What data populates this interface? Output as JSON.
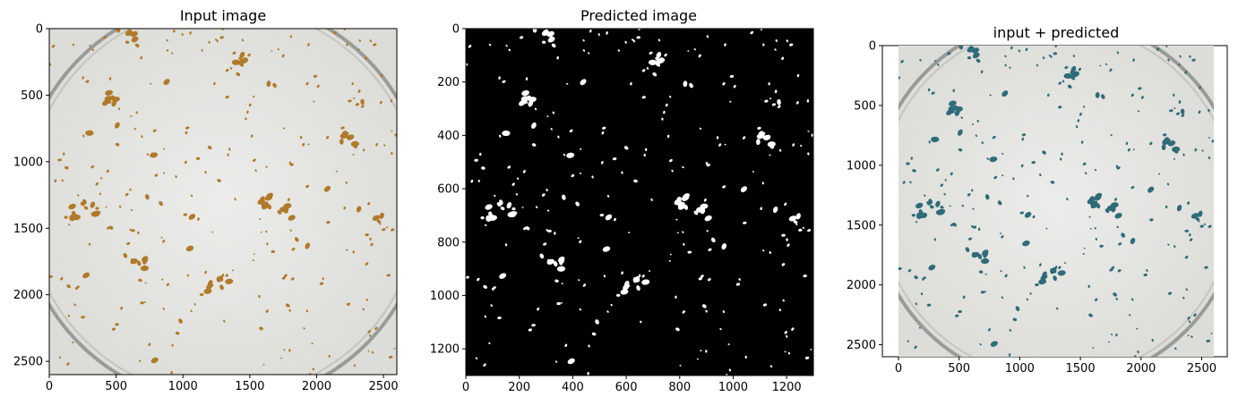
{
  "chart_data": [
    {
      "type": "image",
      "title": "Input image",
      "xlabel": "",
      "ylabel": "",
      "xlim": [
        0,
        2600
      ],
      "ylim": [
        2600,
        0
      ],
      "xticks": [
        0,
        500,
        1000,
        1500,
        2000,
        2500
      ],
      "yticks": [
        0,
        500,
        1000,
        1500,
        2000,
        2500
      ],
      "content": "petri dish photo with brown particles on light grey background",
      "particle_color": "#b07a2a",
      "background_color": "#e4e4e0"
    },
    {
      "type": "image",
      "title": "Predicted image",
      "xlabel": "",
      "ylabel": "",
      "xlim": [
        0,
        1300
      ],
      "ylim": [
        1300,
        0
      ],
      "xticks": [
        0,
        200,
        400,
        600,
        800,
        1000,
        1200
      ],
      "yticks": [
        0,
        200,
        400,
        600,
        800,
        1000,
        1200
      ],
      "content": "binary mask, white blobs on black background",
      "particle_color": "#ffffff",
      "background_color": "#000000"
    },
    {
      "type": "image",
      "title": "input + predicted",
      "xlabel": "",
      "ylabel": "",
      "xlim": [
        0,
        2600
      ],
      "ylim": [
        2600,
        0
      ],
      "xticks": [
        0,
        500,
        1000,
        1500,
        2000,
        2500
      ],
      "yticks": [
        0,
        500,
        1000,
        1500,
        2000,
        2500
      ],
      "content": "overlay of input photo and predicted mask",
      "particle_color": "#2f6b78",
      "background_color": "#e4e4e0"
    }
  ]
}
